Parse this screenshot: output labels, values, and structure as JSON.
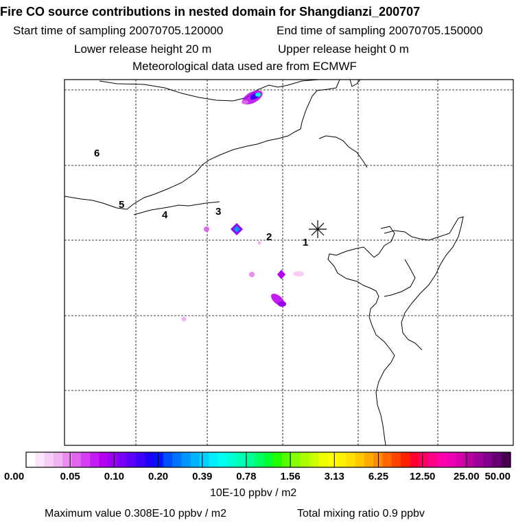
{
  "header": {
    "title": "Fire CO source contributions in nested domain for Shangdianzi_200707",
    "start_time": "Start time of sampling 20070705.120000",
    "end_time": "End time of sampling 20070705.150000",
    "lower_release": "Lower release height   20 m",
    "upper_release": "Upper release height    0 m",
    "met_data": "Meteorological data used are from ECMWF"
  },
  "chart_data": {
    "type": "heatmap",
    "title": "Fire CO source contributions in nested domain for Shangdianzi_200707",
    "station_marker": "asterisk",
    "trajectory_labels": [
      "1",
      "2",
      "3",
      "4",
      "5",
      "6"
    ],
    "grid": true,
    "colorbar": {
      "tick_labels": [
        "0.00",
        "0.05",
        "0.10",
        "0.20",
        "0.39",
        "0.78",
        "1.56",
        "3.13",
        "6.25",
        "12.50",
        "25.00",
        "50.00"
      ],
      "colors": [
        "#ffffff",
        "#fbe6fb",
        "#f6cdf6",
        "#f2b3f2",
        "#ea8cf0",
        "#e066f0",
        "#d13ff0",
        "#c21cf0",
        "#b300ee",
        "#9900f2",
        "#7a00f5",
        "#5c00f7",
        "#3d00f8",
        "#1c00fa",
        "#0014ff",
        "#004cff",
        "#0072ff",
        "#0096ff",
        "#00b4ff",
        "#00d2ff",
        "#00eeff",
        "#00ffee",
        "#00ffd2",
        "#00ffb4",
        "#00ff96",
        "#00ff66",
        "#00ff33",
        "#22ff00",
        "#55ff00",
        "#88ff00",
        "#aaff00",
        "#ccff00",
        "#eeff00",
        "#ffff00",
        "#fff200",
        "#ffe000",
        "#ffc800",
        "#ffaa00",
        "#ff8c00",
        "#ff6600",
        "#ff4400",
        "#ff2200",
        "#ff0033",
        "#ff0066",
        "#ff0088",
        "#ff00aa",
        "#f000b4",
        "#d400aa",
        "#b800a0",
        "#9c0096",
        "#80008c",
        "#660070",
        "#4a0052"
      ],
      "units": "10E-10 ppbv / m2"
    },
    "maximum_value": "Maximum value  0.308E-10 ppbv / m2",
    "total_mixing_ratio": "Total mixing ratio        0.9 ppbv"
  }
}
